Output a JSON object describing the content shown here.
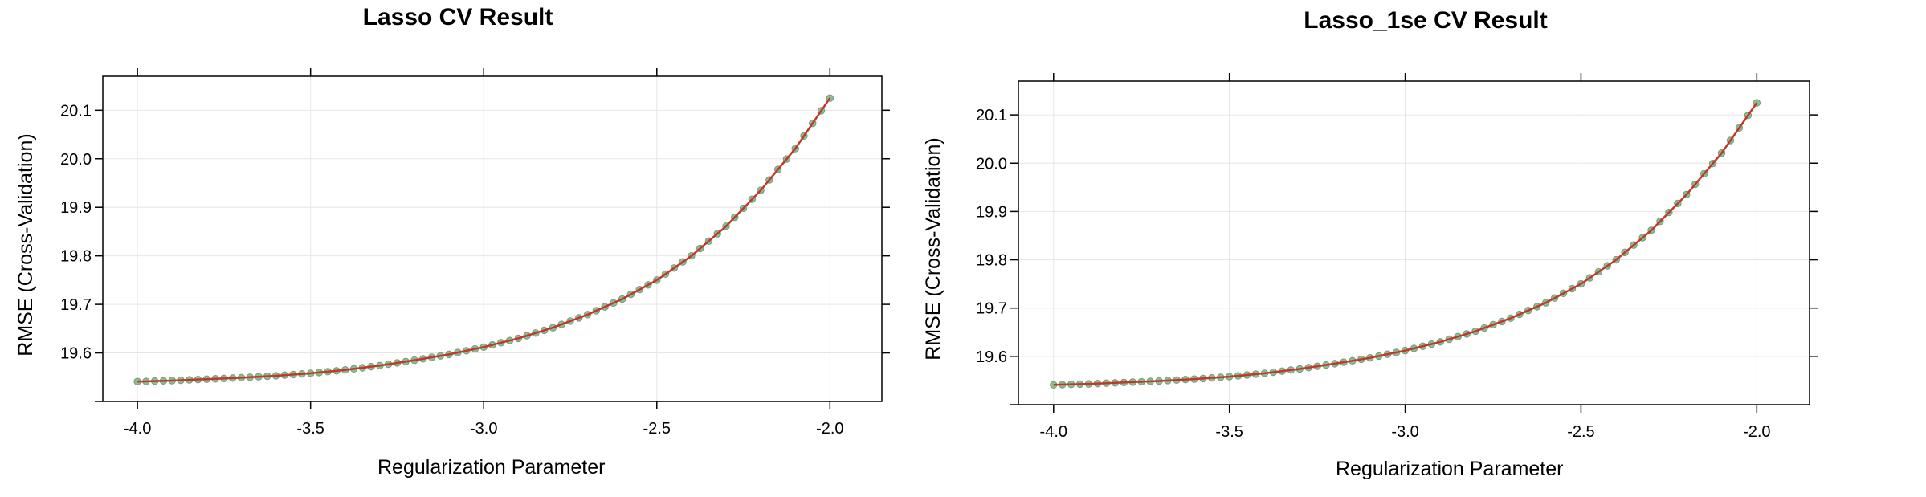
{
  "chart_data": [
    {
      "type": "line",
      "title": "Lasso CV Result",
      "xlabel": "Regularization Parameter",
      "ylabel": "RMSE (Cross-Validation)",
      "xlim": [
        -4.1,
        -1.85
      ],
      "ylim": [
        19.5,
        20.17
      ],
      "xticks": [
        "-4.0",
        "-3.5",
        "-3.0",
        "-2.5",
        "-2.0"
      ],
      "yticks": [
        "19.6",
        "19.7",
        "19.8",
        "19.9",
        "20.0",
        "20.1"
      ],
      "grid": true,
      "series": [
        {
          "x": [
            -4.0,
            -3.9,
            -3.8,
            -3.7,
            -3.6,
            -3.5,
            -3.4,
            -3.3,
            -3.2,
            -3.1,
            -3.0,
            -2.9,
            -2.8,
            -2.7,
            -2.6,
            -2.5,
            -2.4,
            -2.3,
            -2.2,
            -2.1,
            -2.0
          ],
          "values": [
            19.541,
            19.543,
            19.546,
            19.549,
            19.553,
            19.558,
            19.565,
            19.574,
            19.585,
            19.597,
            19.612,
            19.63,
            19.652,
            19.679,
            19.711,
            19.75,
            19.8,
            19.861,
            19.935,
            20.021,
            20.125
          ]
        }
      ],
      "colors": {
        "points": "#8fbc8f",
        "line": "#c0392b"
      }
    },
    {
      "type": "line",
      "title": "Lasso_1se CV Result",
      "xlabel": "Regularization Parameter",
      "ylabel": "RMSE (Cross-Validation)",
      "xlim": [
        -4.1,
        -1.85
      ],
      "ylim": [
        19.5,
        20.17
      ],
      "xticks": [
        "-4.0",
        "-3.5",
        "-3.0",
        "-2.5",
        "-2.0"
      ],
      "yticks": [
        "19.6",
        "19.7",
        "19.8",
        "19.9",
        "20.0",
        "20.1"
      ],
      "grid": true,
      "series": [
        {
          "x": [
            -4.0,
            -3.9,
            -3.8,
            -3.7,
            -3.6,
            -3.5,
            -3.4,
            -3.3,
            -3.2,
            -3.1,
            -3.0,
            -2.9,
            -2.8,
            -2.7,
            -2.6,
            -2.5,
            -2.4,
            -2.3,
            -2.2,
            -2.1,
            -2.0
          ],
          "values": [
            19.541,
            19.543,
            19.546,
            19.549,
            19.553,
            19.558,
            19.565,
            19.574,
            19.585,
            19.597,
            19.612,
            19.63,
            19.652,
            19.679,
            19.711,
            19.75,
            19.8,
            19.861,
            19.935,
            20.021,
            20.125
          ]
        }
      ],
      "colors": {
        "points": "#8fbc8f",
        "line": "#c0392b"
      }
    }
  ]
}
